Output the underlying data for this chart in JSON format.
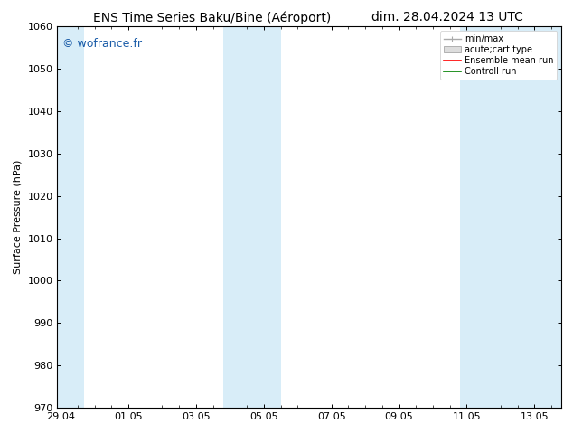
{
  "title_left": "ENS Time Series Baku/Bine (Aéroport)",
  "title_right": "dim. 28.04.2024 13 UTC",
  "ylabel": "Surface Pressure (hPa)",
  "ylim": [
    970,
    1060
  ],
  "yticks": [
    970,
    980,
    990,
    1000,
    1010,
    1020,
    1030,
    1040,
    1050,
    1060
  ],
  "xtick_labels": [
    "29.04",
    "01.05",
    "03.05",
    "05.05",
    "07.05",
    "09.05",
    "11.05",
    "13.05"
  ],
  "xtick_positions": [
    0,
    2,
    4,
    6,
    8,
    10,
    12,
    14
  ],
  "xlim": [
    -0.1,
    14.8
  ],
  "shaded_bands": [
    {
      "x_start": -0.1,
      "x_end": 0.7
    },
    {
      "x_start": 4.8,
      "x_end": 6.5
    },
    {
      "x_start": 11.8,
      "x_end": 14.8
    }
  ],
  "shade_color": "#d8edf8",
  "watermark": "© wofrance.fr",
  "watermark_color": "#1a5ca8",
  "background_color": "#ffffff",
  "plot_bg_color": "#ffffff",
  "grid_color": "#c8c8c8",
  "legend_labels": [
    "min/max",
    "acute;cart type",
    "Ensemble mean run",
    "Controll run"
  ],
  "legend_line_color": "#aaaaaa",
  "legend_patch_color": "#dddddd",
  "legend_red": "#ff0000",
  "legend_green": "#008000",
  "title_fontsize": 10,
  "ylabel_fontsize": 8,
  "tick_fontsize": 8,
  "watermark_fontsize": 9,
  "legend_fontsize": 7
}
